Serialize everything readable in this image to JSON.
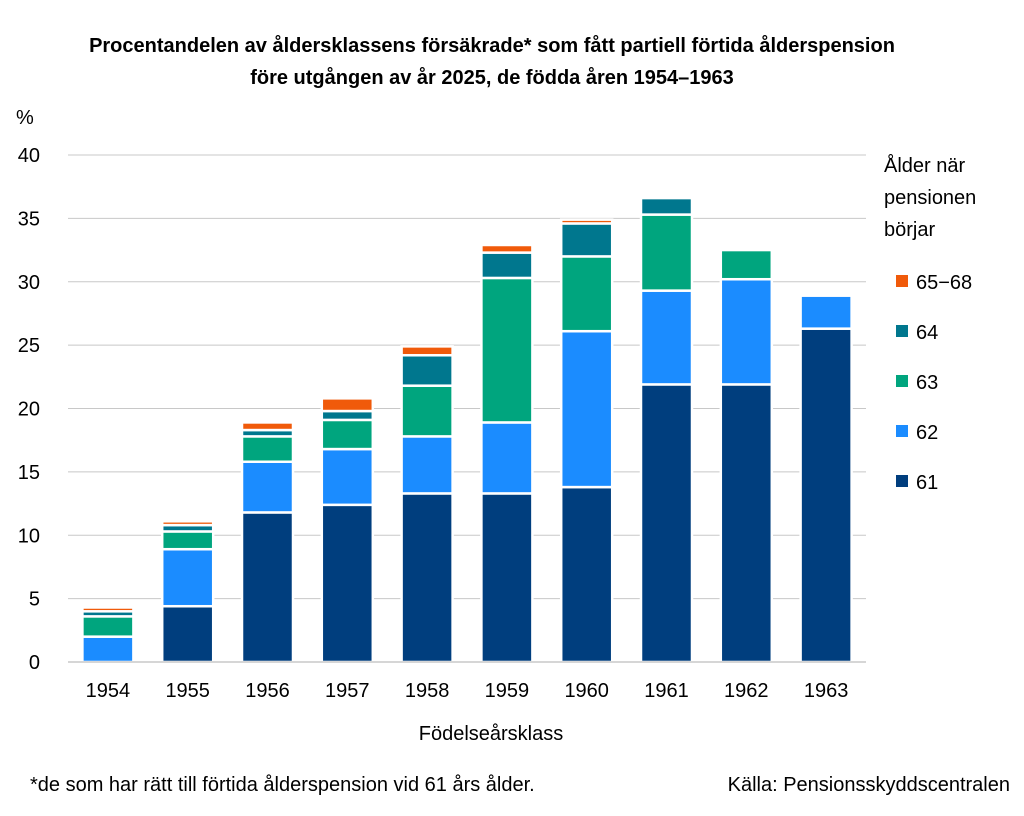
{
  "chart_data": {
    "type": "bar",
    "stacked": true,
    "title_line1": "Procentandelen av åldersklassens försäkrade* som fått partiell förtida ålderspension",
    "title_line2": "före utgången av år 2025, de födda åren 1954–1963",
    "ylabel": "%",
    "xlabel": "Födelseårsklass",
    "ylim": [
      0,
      40
    ],
    "yticks": [
      "0",
      "5",
      "10",
      "15",
      "20",
      "25",
      "30",
      "35",
      "40"
    ],
    "grid": true,
    "legend_position": "right",
    "legend_title": [
      "Ålder när",
      "pensionen",
      "börjar"
    ],
    "categories": [
      "1954",
      "1955",
      "1956",
      "1957",
      "1958",
      "1959",
      "1960",
      "1961",
      "1962",
      "1963"
    ],
    "series": [
      {
        "name": "61",
        "color": "#003e7e",
        "values": [
          0,
          4.4,
          11.8,
          12.4,
          13.3,
          13.3,
          13.8,
          21.9,
          21.9,
          26.3
        ]
      },
      {
        "name": "62",
        "color": "#1b8cff",
        "values": [
          2.0,
          4.5,
          4.0,
          4.4,
          4.5,
          5.6,
          12.3,
          7.4,
          8.3,
          2.6
        ]
      },
      {
        "name": "63",
        "color": "#00a57e",
        "values": [
          1.6,
          1.4,
          2.0,
          2.3,
          4.0,
          11.4,
          5.9,
          6.0,
          2.3,
          0
        ]
      },
      {
        "name": "64",
        "color": "#00778e",
        "values": [
          0.4,
          0.5,
          0.5,
          0.7,
          2.4,
          2.0,
          2.6,
          1.3,
          0,
          0
        ]
      },
      {
        "name": "65−68",
        "color": "#f05a0a",
        "values": [
          0.3,
          0.3,
          0.6,
          1.0,
          0.7,
          0.6,
          0.3,
          0,
          0,
          0
        ]
      }
    ],
    "footnote": "*de som har rätt till förtida ålderspension vid 61 års ålder.",
    "source": "Källa: Pensionsskyddscentralen"
  }
}
